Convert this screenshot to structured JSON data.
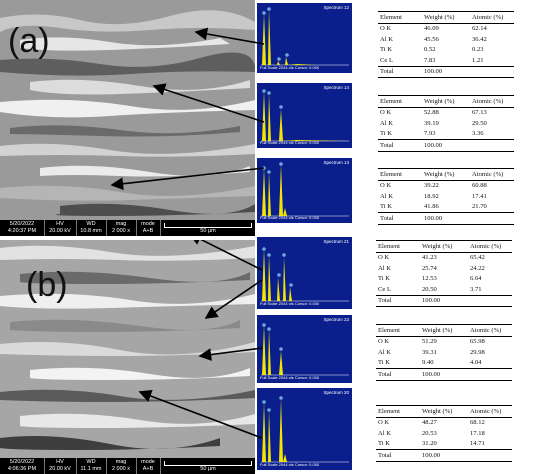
{
  "panel_a": {
    "label": "(a)",
    "scalebar": {
      "date": "5/20/2022",
      "time": "4:20:37 PM",
      "hv_label": "HV",
      "hv": "20.00 kV",
      "wd_label": "WD",
      "wd": "10.8 mm",
      "mag_label": "mag",
      "mag": "2 000 x",
      "mode_label": "mode",
      "mode": "A+B",
      "scale": "50 µm"
    },
    "spectra": [
      {
        "title": "Spectrum 12",
        "footer": "Full Scale 2044 cts Cursor: 0.000"
      },
      {
        "title": "Spectrum 14",
        "footer": "Full Scale 2044 cts Cursor: 0.000"
      },
      {
        "title": "Spectrum 13",
        "footer": "Full Scale 2044 cts Cursor: 0.000"
      }
    ],
    "tables": [
      {
        "headers": [
          "Element",
          "Weight (%)",
          "Atomic (%)"
        ],
        "rows": [
          [
            "O K",
            "46.09",
            "62.14"
          ],
          [
            "Al K",
            "45.56",
            "36.42"
          ],
          [
            "Ti K",
            "0.52",
            "0.23"
          ],
          [
            "Ce L",
            "7.83",
            "1.21"
          ]
        ],
        "total": [
          "Total",
          "100.00",
          ""
        ]
      },
      {
        "headers": [
          "Element",
          "Weight (%)",
          "Atomic (%)"
        ],
        "rows": [
          [
            "O K",
            "52.88",
            "67.13"
          ],
          [
            "Al K",
            "39.19",
            "29.50"
          ],
          [
            "Ti K",
            "7.93",
            "3.36"
          ]
        ],
        "total": [
          "Total",
          "100.00",
          ""
        ]
      },
      {
        "headers": [
          "Element",
          "Weight (%)",
          "Atomic (%)"
        ],
        "rows": [
          [
            "O K",
            "39.22",
            "60.88"
          ],
          [
            "Al K",
            "18.92",
            "17.41"
          ],
          [
            "Ti K",
            "41.86",
            "21.70"
          ]
        ],
        "total": [
          "Total",
          "100.00",
          ""
        ]
      }
    ]
  },
  "panel_b": {
    "label": "(b)",
    "scalebar": {
      "date": "5/20/2022",
      "time": "4:06:36 PM",
      "hv_label": "HV",
      "hv": "20.00 kV",
      "wd_label": "WD",
      "wd": "11.1 mm",
      "mag_label": "mag",
      "mag": "2 000 x",
      "mode_label": "mode",
      "mode": "A+B",
      "scale": "50 µm"
    },
    "spectra": [
      {
        "title": "Spectrum 21",
        "footer": "Full Scale 2044 cts Cursor: 0.000"
      },
      {
        "title": "Spectrum 23",
        "footer": "Full Scale 2044 cts Cursor: 0.000"
      },
      {
        "title": "Spectrum 20",
        "footer": "Full Scale 2044 cts Cursor: 0.000"
      }
    ],
    "tables": [
      {
        "headers": [
          "Element",
          "Weight (%)",
          "Atomic (%)"
        ],
        "rows": [
          [
            "O K",
            "41.23",
            "65.42"
          ],
          [
            "Al K",
            "25.74",
            "24.22"
          ],
          [
            "Ti K",
            "12.53",
            "6.64"
          ],
          [
            "Ce L",
            "20.50",
            "3.71"
          ]
        ],
        "total": [
          "Total",
          "100.00",
          ""
        ]
      },
      {
        "headers": [
          "Element",
          "Weight (%)",
          "Atomic (%)"
        ],
        "rows": [
          [
            "O K",
            "51.29",
            "65.98"
          ],
          [
            "Al K",
            "39.31",
            "29.98"
          ],
          [
            "Ti K",
            "9.40",
            "4.04"
          ]
        ],
        "total": [
          "Total",
          "100.00",
          ""
        ]
      },
      {
        "headers": [
          "Element",
          "Weight (%)",
          "Atomic (%)"
        ],
        "rows": [
          [
            "O K",
            "48.27",
            "68.12"
          ],
          [
            "Al K",
            "20.53",
            "17.18"
          ],
          [
            "Ti K",
            "31.20",
            "14.71"
          ]
        ],
        "total": [
          "Total",
          "100.00",
          ""
        ]
      }
    ]
  },
  "colors": {
    "spectrum_bg": "#0a1f8c",
    "spectrum_peak": "#f2e600",
    "marker": "#6fa6d8"
  }
}
